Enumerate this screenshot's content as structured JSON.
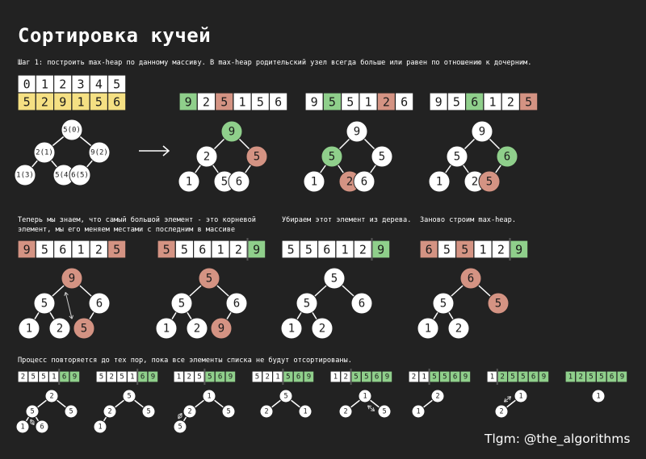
{
  "title": "Сортировка кучей",
  "captions": {
    "step1": "Шаг 1: построить max-heap по данному массиву. В max-heap родительский узел всегда больше или равен по отношению к дочерним.",
    "swap": "Теперь мы знаем, что самый большой элемент - это корневой\nэлемент, мы его меняем местами с последним в массиве",
    "remove": "Убираем этот элемент из дерева.",
    "rebuild": "Заново строим max-heap.",
    "repeat": "Процесс повторяется до тех пор, пока все элементы списка не будут отсортированы."
  },
  "footer": "Tlgm: @the_algorithms",
  "colors": {
    "background": "#222222",
    "white": "#ffffff",
    "yellow": "#f5e083",
    "green": "#8fcf8b",
    "salmon": "#d49383",
    "line": "#ffffff",
    "text_dark": "#1a1a1a"
  },
  "diagrams": {
    "index_row": [
      "0",
      "1",
      "2",
      "3",
      "4",
      "5"
    ],
    "input_row": [
      "5",
      "2",
      "9",
      "1",
      "5",
      "6"
    ],
    "arrow": "→",
    "step1_arrays": [
      {
        "values": [
          "9",
          "2",
          "5",
          "1",
          "5",
          "6"
        ],
        "states": [
          "green",
          "white",
          "salmon",
          "white",
          "white",
          "white"
        ]
      },
      {
        "values": [
          "9",
          "5",
          "5",
          "1",
          "2",
          "6"
        ],
        "states": [
          "white",
          "green",
          "white",
          "white",
          "salmon",
          "white"
        ]
      },
      {
        "values": [
          "9",
          "5",
          "6",
          "1",
          "2",
          "5"
        ],
        "states": [
          "white",
          "white",
          "green",
          "white",
          "white",
          "salmon"
        ]
      }
    ],
    "initial_tree": {
      "nodes": [
        "5(0)",
        "2(1)",
        "9(2)",
        "1(3)",
        "5(4)",
        "6(5)"
      ]
    },
    "step1_trees": [
      {
        "nodes": [
          "9",
          "2",
          "5",
          "1",
          "5",
          "6"
        ],
        "states": [
          "green",
          "white",
          "salmon",
          "white",
          "white",
          "white"
        ]
      },
      {
        "nodes": [
          "9",
          "5",
          "5",
          "1",
          "2",
          "6"
        ],
        "states": [
          "white",
          "green",
          "white",
          "white",
          "salmon",
          "white"
        ]
      },
      {
        "nodes": [
          "9",
          "5",
          "6",
          "1",
          "2",
          "5"
        ],
        "states": [
          "white",
          "white",
          "green",
          "white",
          "white",
          "salmon"
        ]
      }
    ],
    "row2_arrays": [
      {
        "values": [
          "9",
          "5",
          "6",
          "1",
          "2",
          "5"
        ],
        "states": [
          "salmon",
          "white",
          "white",
          "white",
          "white",
          "salmon"
        ],
        "divider": null
      },
      {
        "values": [
          "5",
          "5",
          "6",
          "1",
          "2",
          "9"
        ],
        "states": [
          "salmon",
          "white",
          "white",
          "white",
          "white",
          "green"
        ],
        "divider": 5
      },
      {
        "values": [
          "5",
          "5",
          "6",
          "1",
          "2",
          "9"
        ],
        "states": [
          "white",
          "white",
          "white",
          "white",
          "white",
          "green"
        ],
        "divider": 5
      },
      {
        "values": [
          "6",
          "5",
          "5",
          "1",
          "2",
          "9"
        ],
        "states": [
          "salmon",
          "white",
          "salmon",
          "white",
          "white",
          "green"
        ],
        "divider": 5
      }
    ],
    "row2_trees": [
      {
        "nodes": [
          "9",
          "5",
          "6",
          "1",
          "2",
          "5"
        ],
        "states": [
          "salmon",
          "white",
          "white",
          "white",
          "white",
          "salmon"
        ],
        "swap": [
          0,
          5
        ]
      },
      {
        "nodes": [
          "5",
          "5",
          "6",
          "1",
          "2",
          "9"
        ],
        "states": [
          "salmon",
          "white",
          "white",
          "white",
          "white",
          "salmon"
        ]
      },
      {
        "nodes": [
          "5",
          "5",
          "6",
          "1",
          "2"
        ],
        "states": [
          "white",
          "white",
          "white",
          "white",
          "white"
        ]
      },
      {
        "nodes": [
          "6",
          "5",
          "5",
          "1",
          "2"
        ],
        "states": [
          "salmon",
          "white",
          "salmon",
          "white",
          "white"
        ]
      }
    ],
    "row3_arrays": [
      {
        "values": [
          "2",
          "5",
          "5",
          "1",
          "6",
          "9"
        ],
        "sorted_from": 4
      },
      {
        "values": [
          "5",
          "2",
          "5",
          "1",
          "6",
          "9"
        ],
        "sorted_from": 4
      },
      {
        "values": [
          "1",
          "2",
          "5",
          "5",
          "6",
          "9"
        ],
        "sorted_from": 3
      },
      {
        "values": [
          "5",
          "2",
          "1",
          "5",
          "6",
          "9"
        ],
        "sorted_from": 3
      },
      {
        "values": [
          "1",
          "2",
          "5",
          "5",
          "6",
          "9"
        ],
        "sorted_from": 2
      },
      {
        "values": [
          "2",
          "1",
          "5",
          "5",
          "6",
          "9"
        ],
        "sorted_from": 2
      },
      {
        "values": [
          "1",
          "2",
          "5",
          "5",
          "6",
          "9"
        ],
        "sorted_from": 1
      },
      {
        "values": [
          "1",
          "2",
          "5",
          "5",
          "6",
          "9"
        ],
        "sorted_from": 0
      }
    ],
    "row3_trees": [
      {
        "nodes": [
          "2",
          "5",
          "5",
          "1",
          "6"
        ],
        "swap": [
          1,
          4
        ]
      },
      {
        "nodes": [
          "5",
          "2",
          "5",
          "1"
        ]
      },
      {
        "nodes": [
          "1",
          "2",
          "5",
          "5"
        ],
        "swap": [
          1,
          3
        ]
      },
      {
        "nodes": [
          "5",
          "2",
          "1"
        ]
      },
      {
        "nodes": [
          "1",
          "2",
          "5"
        ],
        "swap": [
          0,
          2
        ]
      },
      {
        "nodes": [
          "2",
          "1"
        ]
      },
      {
        "nodes": [
          "1",
          "2"
        ],
        "swap": [
          0,
          1
        ]
      },
      {
        "nodes": [
          "1"
        ]
      }
    ]
  }
}
